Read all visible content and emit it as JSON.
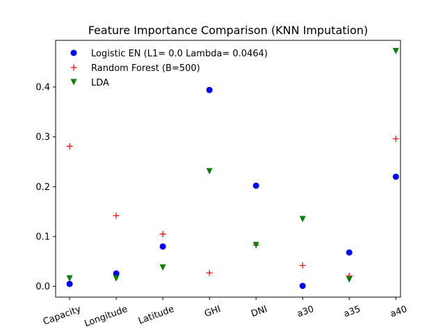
{
  "chart_data": {
    "type": "scatter",
    "title": "Feature Importance Comparison (KNN Imputation)",
    "xlabel": "",
    "ylabel": "",
    "categories": [
      "Capacity",
      "Longitude",
      "Latitude",
      "GHI",
      "DNI",
      "a30",
      "a35",
      "a40"
    ],
    "yticks": [
      0.0,
      0.1,
      0.2,
      0.3,
      0.4
    ],
    "ytick_labels": [
      "0.0",
      "0.1",
      "0.2",
      "0.3",
      "0.4"
    ],
    "ylim": [
      -0.0215,
      0.4935
    ],
    "grid": false,
    "legend_position": "upper-left",
    "series": [
      {
        "name": "Logistic EN (L1= 0.0 Lambda= 0.0464)",
        "marker": "circle",
        "color": "#0000ff",
        "values": [
          0.005,
          0.026,
          0.08,
          0.394,
          0.202,
          0.001,
          0.068,
          0.22
        ]
      },
      {
        "name": "Random Forest (B=500)",
        "marker": "plus",
        "color": "#ff0000",
        "values": [
          0.281,
          0.142,
          0.105,
          0.027,
          0.083,
          0.042,
          0.021,
          0.296
        ]
      },
      {
        "name": "LDA",
        "marker": "triangle-down",
        "color": "#008000",
        "values": [
          0.016,
          0.016,
          0.038,
          0.231,
          0.083,
          0.135,
          0.014,
          0.472
        ]
      }
    ]
  }
}
